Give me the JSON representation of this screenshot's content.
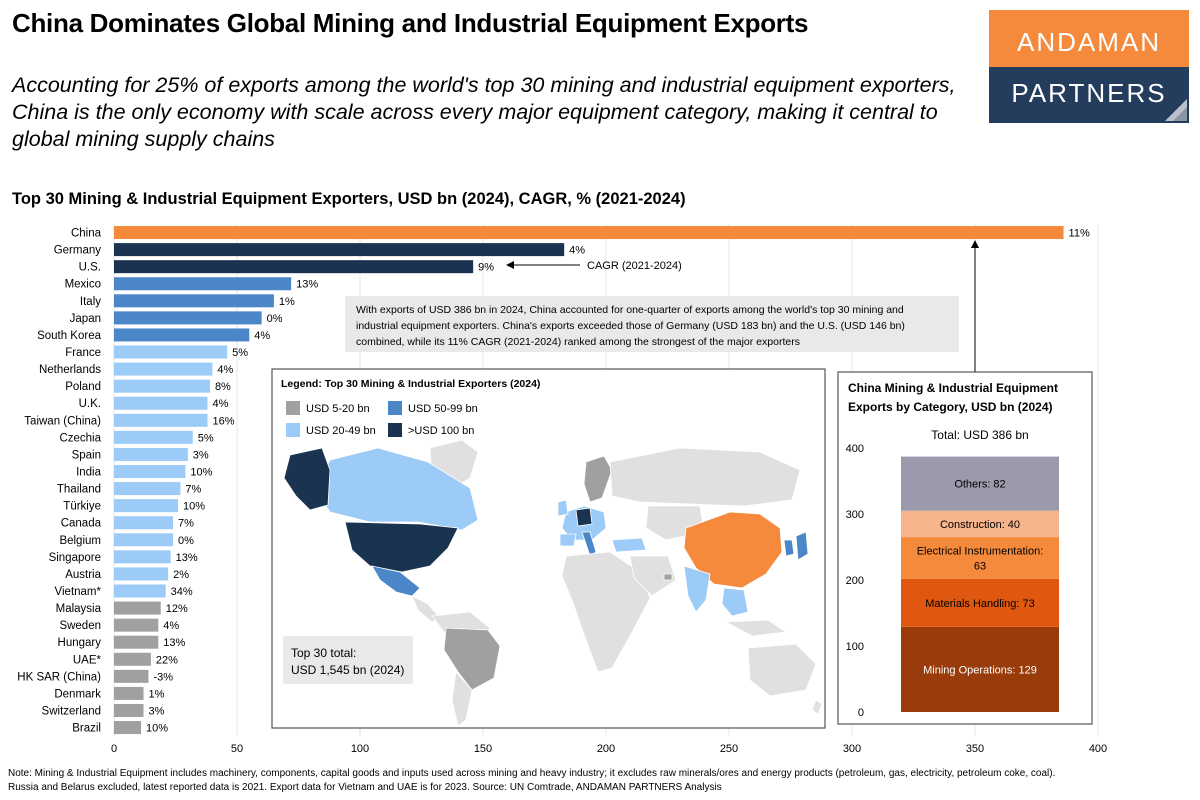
{
  "header": {
    "title": "China Dominates Global Mining and Industrial Equipment Exports",
    "subtitle": "Accounting for 25% of exports among the world's top 30 mining and industrial equipment exporters, China is the only economy with scale across every major equipment category, making it central to global mining supply chains"
  },
  "logo": {
    "line1": "ANDAMAN",
    "line2": "PARTNERS"
  },
  "colors": {
    "orange": "#f58a3c",
    "navy": "#1a3350",
    "mid_blue": "#4a86c8",
    "light_blue": "#9bcbf6",
    "gray": "#a0a0a0",
    "logo_navy": "#243d5c"
  },
  "chart_data": [
    {
      "type": "bar",
      "orientation": "horizontal",
      "title": "Top 30 Mining & Industrial Equipment Exporters, USD bn (2024), CAGR, % (2021-2024)",
      "categories": [
        "China",
        "Germany",
        "U.S.",
        "Mexico",
        "Italy",
        "Japan",
        "South Korea",
        "France",
        "Netherlands",
        "Poland",
        "U.K.",
        "Taiwan (China)",
        "Czechia",
        "Spain",
        "India",
        "Thailand",
        "Türkiye",
        "Canada",
        "Belgium",
        "Singapore",
        "Austria",
        "Vietnam*",
        "Malaysia",
        "Sweden",
        "Hungary",
        "UAE*",
        "HK SAR (China)",
        "Denmark",
        "Switzerland",
        "Brazil"
      ],
      "values": [
        386,
        183,
        146,
        72,
        65,
        60,
        55,
        46,
        40,
        39,
        38,
        38,
        32,
        30,
        29,
        27,
        26,
        24,
        24,
        23,
        22,
        21,
        19,
        18,
        18,
        15,
        14,
        12,
        12,
        11
      ],
      "cagr_labels": [
        "11%",
        "4%",
        "9%",
        "13%",
        "1%",
        "0%",
        "4%",
        "5%",
        "4%",
        "8%",
        "4%",
        "16%",
        "5%",
        "3%",
        "10%",
        "7%",
        "10%",
        "7%",
        "0%",
        "13%",
        "2%",
        "34%",
        "12%",
        "4%",
        "13%",
        "22%",
        "-3%",
        "1%",
        "3%",
        "10%"
      ],
      "color_groups": [
        "china",
        "100+",
        "100+",
        "50-99",
        "50-99",
        "50-99",
        "50-99",
        "20-49",
        "20-49",
        "20-49",
        "20-49",
        "20-49",
        "20-49",
        "20-49",
        "20-49",
        "20-49",
        "20-49",
        "20-49",
        "20-49",
        "20-49",
        "20-49",
        "20-49",
        "5-20",
        "5-20",
        "5-20",
        "5-20",
        "5-20",
        "5-20",
        "5-20",
        "5-20"
      ],
      "xlim": [
        0,
        400
      ],
      "xticks": [
        "0",
        "50",
        "100",
        "150",
        "200",
        "250",
        "300",
        "350",
        "400"
      ],
      "grid": true
    },
    {
      "type": "bar",
      "stacked": true,
      "title": "China Mining & Industrial Equipment Exports by Category, USD bn (2024)",
      "total_label": "Total: USD 386 bn",
      "segments": [
        {
          "name": "Mining Operations: 129",
          "value": 129,
          "color": "#993b0b"
        },
        {
          "name": "Materials Handling: 73",
          "value": 73,
          "color": "#e0580f"
        },
        {
          "name": "Electrical Instrumentation: 63",
          "value": 63,
          "color": "#f58a3c"
        },
        {
          "name": "Construction: 40",
          "value": 40,
          "color": "#f8b58d"
        },
        {
          "name": "Others: 82",
          "value": 82,
          "color": "#9a9aac"
        }
      ],
      "ylim": [
        0,
        400
      ],
      "yticks": [
        "0",
        "100",
        "200",
        "300",
        "400"
      ]
    }
  ],
  "annotations": {
    "cagr_arrow": "CAGR (2021-2024)",
    "callout_lines": [
      "With exports of USD 386 bn in 2024, China accounted for one-quarter of exports among the world's top 30 mining and",
      "industrial equipment exporters. China's exports exceeded those of Germany (USD 183 bn) and the U.S. (USD 146 bn)",
      "combined, while its 11% CAGR (2021-2024) ranked among the strongest of the major exporters"
    ],
    "total_lines": [
      "Top 30 total:",
      "USD 1,545 bn (2024)"
    ]
  },
  "map_legend": {
    "title": "Legend: Top 30 Mining & Industrial Exporters (2024)",
    "items": [
      {
        "label": "USD 5-20 bn",
        "color": "#a0a0a0"
      },
      {
        "label": "USD 50-99 bn",
        "color": "#4a86c8"
      },
      {
        "label": "USD 20-49 bn",
        "color": "#9bcbf6"
      },
      {
        "label": ">USD 100 bn",
        "color": "#1a3350"
      }
    ]
  },
  "footnote": {
    "line1": "Note: Mining & Industrial Equipment includes machinery, components, capital goods and inputs used across mining and heavy industry; it excludes raw minerals/ores and energy products (petroleum, gas, electricity, petroleum coke, coal).",
    "line2": "Russia and Belarus excluded, latest reported data is 2021. Export data for Vietnam and UAE is for 2023. Source: UN Comtrade, ANDAMAN PARTNERS Analysis"
  }
}
